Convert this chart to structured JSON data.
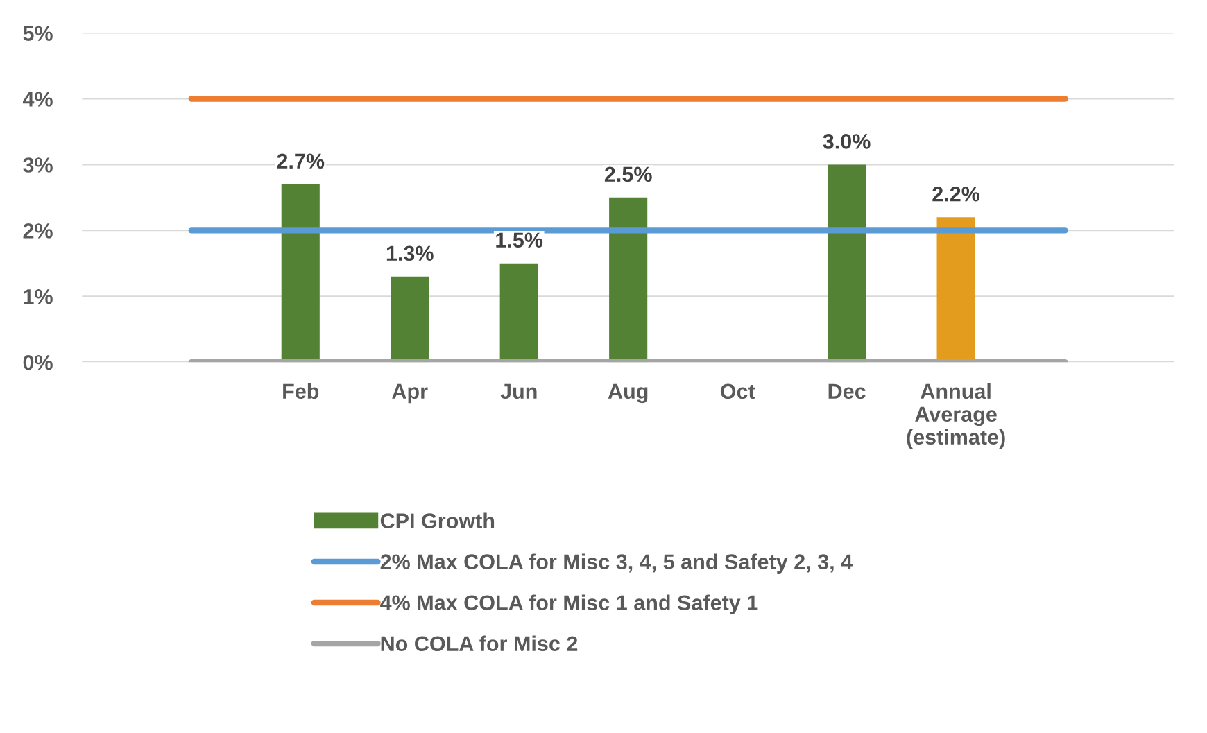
{
  "chart_data": {
    "type": "bar",
    "categories": [
      null,
      "Feb",
      "Apr",
      "Jun",
      "Aug",
      "Oct",
      "Dec",
      "Annual\nAverage\n(estimate)",
      null
    ],
    "series": [
      {
        "name": "CPI Growth",
        "color": "#548235",
        "colors": [
          "#548235",
          "#548235",
          "#548235",
          "#548235",
          "#548235",
          "#548235",
          "#548235",
          "#e49c1e",
          "#548235"
        ],
        "values": [
          null,
          2.7,
          1.3,
          1.5,
          2.5,
          null,
          3.0,
          2.2,
          null
        ],
        "value_labels": [
          null,
          "2.7%",
          "1.3%",
          "1.5%",
          "2.5%",
          null,
          "3.0%",
          "2.2%",
          null
        ]
      },
      {
        "name": "2% Max COLA for Misc 3, 4, 5 and Safety 2, 3, 4",
        "type": "line",
        "color": "#5b9bd5",
        "values": [
          2,
          2,
          2,
          2,
          2,
          2,
          2,
          2,
          2
        ]
      },
      {
        "name": "4% Max COLA for Misc 1 and Safety 1",
        "type": "line",
        "color": "#ed7d31",
        "values": [
          4,
          4,
          4,
          4,
          4,
          4,
          4,
          4,
          4
        ]
      },
      {
        "name": "No COLA for Misc 2",
        "type": "line",
        "color": "#a5a5a5",
        "values": [
          0,
          0,
          0,
          0,
          0,
          0,
          0,
          0,
          0
        ]
      }
    ],
    "ylim": [
      0,
      5
    ],
    "yticks": [
      {
        "value": 0,
        "label": "0%"
      },
      {
        "value": 1,
        "label": "1%"
      },
      {
        "value": 2,
        "label": "2%"
      },
      {
        "value": 3,
        "label": "3%"
      },
      {
        "value": 4,
        "label": "4%"
      },
      {
        "value": 5,
        "label": "5%"
      }
    ],
    "grid": "y",
    "legend": "bottom",
    "marker": "none",
    "line_style": "solid"
  }
}
